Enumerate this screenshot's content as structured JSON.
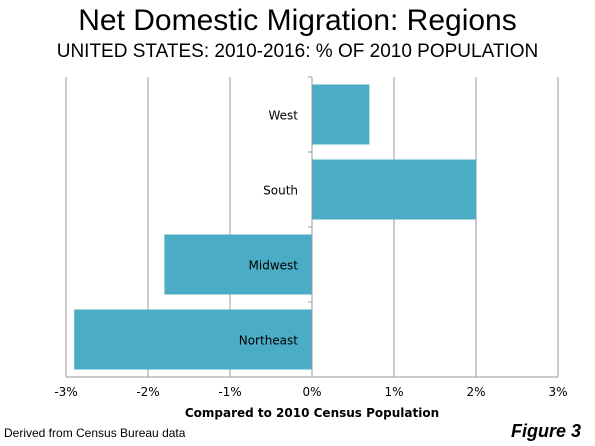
{
  "title": "Net Domestic Migration: Regions",
  "subtitle": "UNITED STATES: 2010-2016: % OF 2010 POPULATION",
  "footer_note": "Derived from Census Bureau data",
  "figure_label": "Figure 3",
  "chart_data": {
    "type": "bar",
    "orientation": "horizontal",
    "categories": [
      "West",
      "South",
      "Midwest",
      "Northeast"
    ],
    "values": [
      0.7,
      2.0,
      -1.8,
      -2.9
    ],
    "xlabel": "Compared to 2010 Census Population",
    "xlim": [
      -3,
      3
    ],
    "xticks": [
      -3,
      -2,
      -1,
      0,
      1,
      2,
      3
    ],
    "xtick_labels": [
      "-3%",
      "-2%",
      "-1%",
      "0%",
      "1%",
      "2%",
      "3%"
    ],
    "grid": true,
    "bar_color": "#4BACC6"
  }
}
